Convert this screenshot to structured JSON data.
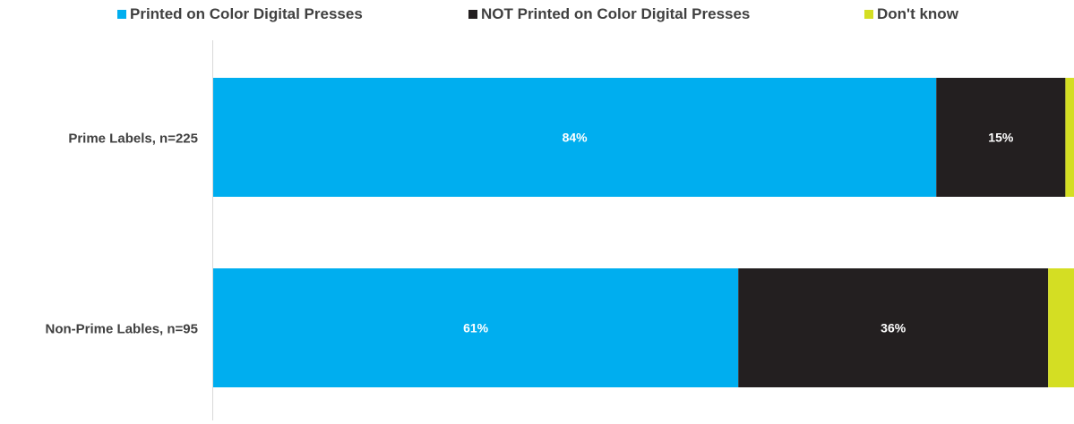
{
  "chart_data": {
    "type": "bar",
    "orientation": "horizontal",
    "stacked": true,
    "categories": [
      "Prime Labels, n=225",
      "Non-Prime Lables, n=95"
    ],
    "series": [
      {
        "name": "Printed on Color Digital Presses",
        "values": [
          84,
          61
        ],
        "labels": [
          "84%",
          "61%"
        ],
        "color": "#00AEEF"
      },
      {
        "name": "NOT Printed on Color Digital Presses",
        "values": [
          15,
          36
        ],
        "labels": [
          "15%",
          "36%"
        ],
        "color": "#231F20"
      },
      {
        "name": "Don't know",
        "values": [
          1,
          3
        ],
        "labels": [
          "",
          ""
        ],
        "color": "#D4DE23"
      }
    ],
    "xlim": [
      0,
      100
    ],
    "grid": false,
    "legend_position": "top"
  }
}
